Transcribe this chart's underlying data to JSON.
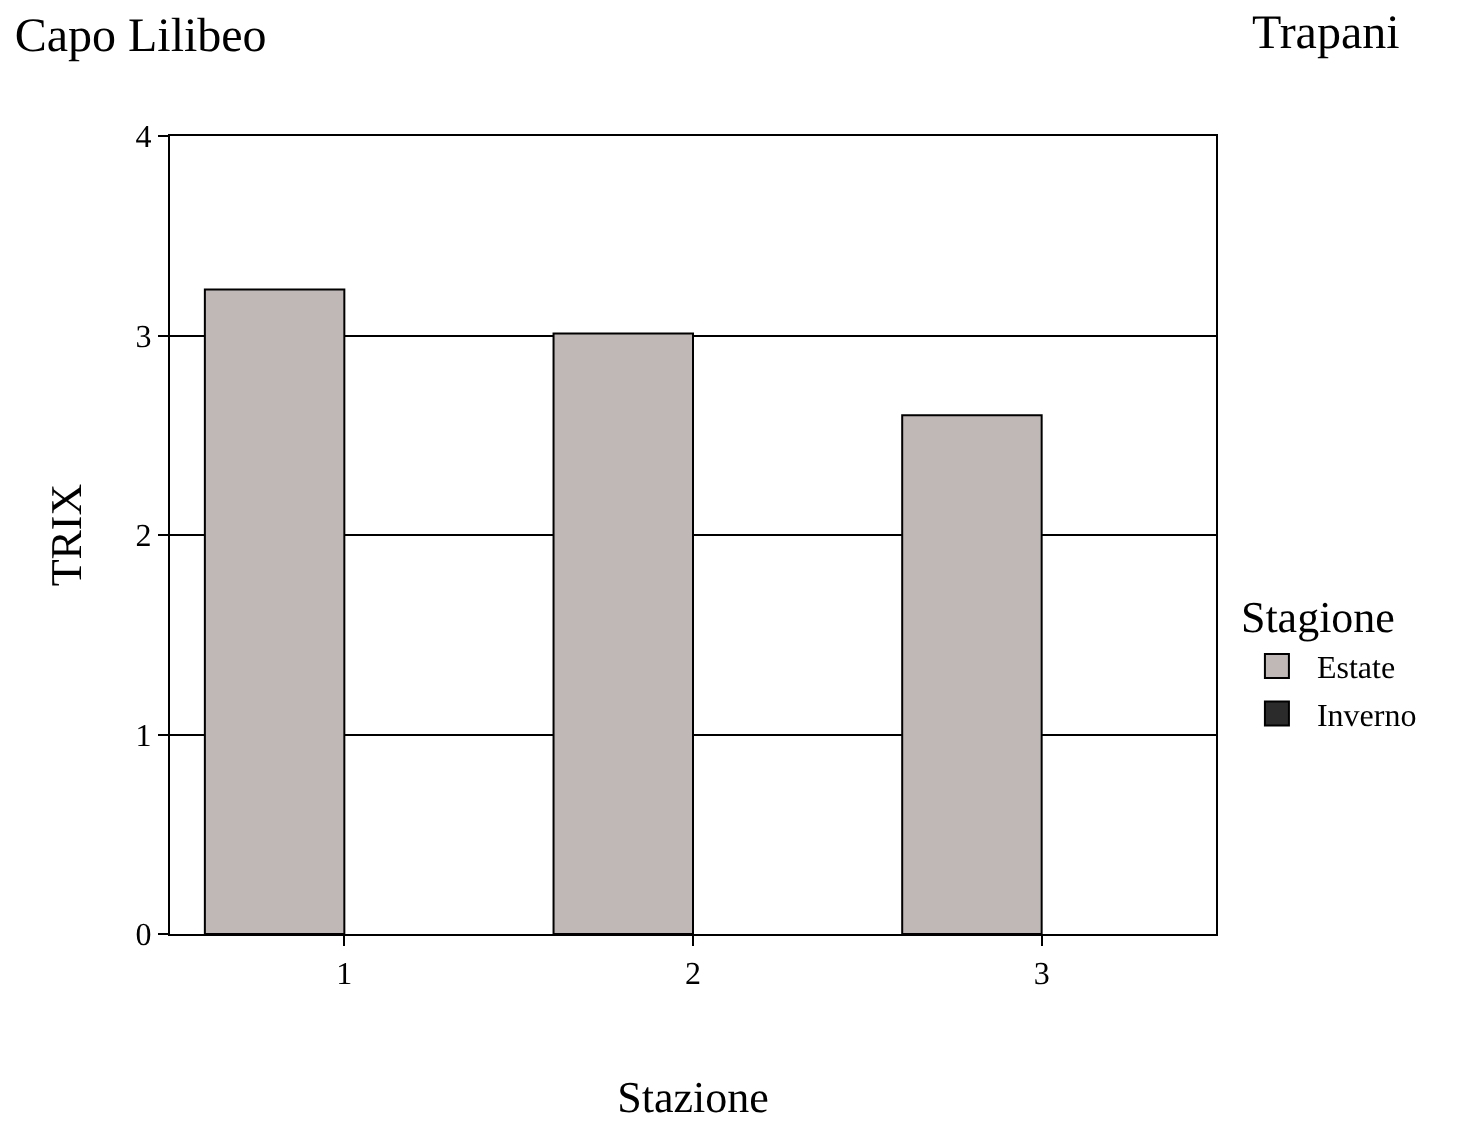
{
  "chart_data": {
    "type": "bar",
    "title": "Capo Lilibeo",
    "subtitle": "Trapani",
    "xlabel": "Stazione",
    "ylabel": "TRIX",
    "legend_title": "Stagione",
    "categories": [
      "1",
      "2",
      "3"
    ],
    "series": [
      {
        "name": "Estate",
        "color": "#c0b8b6",
        "values": [
          3.23,
          3.01,
          2.6
        ]
      },
      {
        "name": "Inverno",
        "color": "#2b2b2b",
        "values": [
          null,
          null,
          null
        ]
      }
    ],
    "ylim": [
      0,
      4
    ],
    "yticks": [
      0,
      1,
      2,
      3,
      4
    ],
    "grid": "y",
    "legend": "right"
  }
}
